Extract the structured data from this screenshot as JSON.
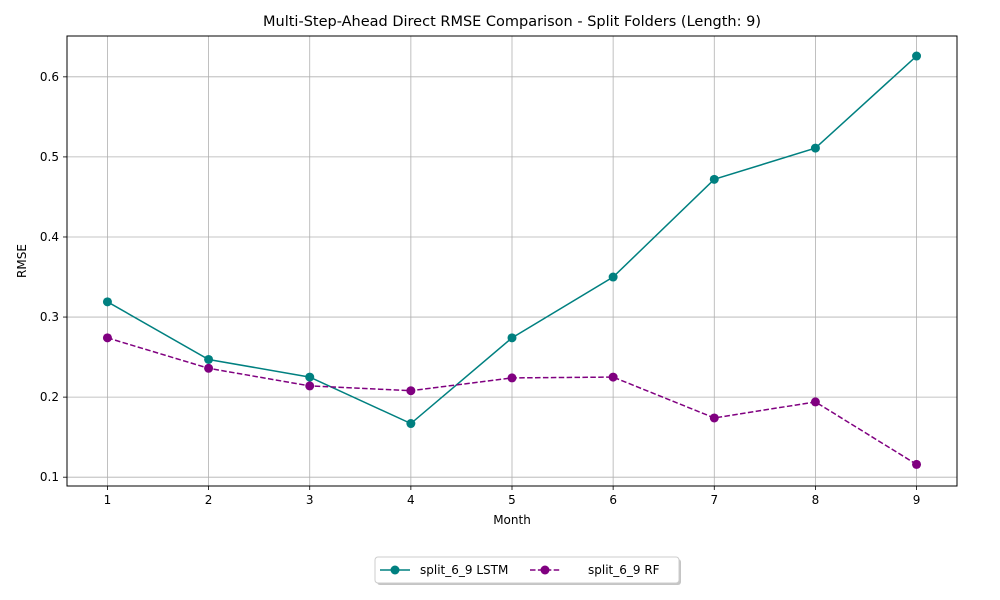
{
  "chart_data": {
    "type": "line",
    "title": "Multi-Step-Ahead Direct RMSE Comparison - Split Folders (Length: 9)",
    "xlabel": "Month",
    "ylabel": "RMSE",
    "x": [
      1,
      2,
      3,
      4,
      5,
      6,
      7,
      8,
      9
    ],
    "xlim": [
      0.6,
      9.4
    ],
    "ylim": [
      0.089,
      0.651
    ],
    "yticks": [
      0.1,
      0.2,
      0.3,
      0.4,
      0.5,
      0.6
    ],
    "ytick_labels": [
      "0.1",
      "0.2",
      "0.3",
      "0.4",
      "0.5",
      "0.6"
    ],
    "xtick_labels": [
      "1",
      "2",
      "3",
      "4",
      "5",
      "6",
      "7",
      "8",
      "9"
    ],
    "grid": true,
    "legend_position": "bottom-center, below plot",
    "series": [
      {
        "name": "split_6_9 LSTM",
        "values": [
          0.319,
          0.247,
          0.225,
          0.167,
          0.274,
          0.35,
          0.472,
          0.511,
          0.626
        ],
        "color": "#008080",
        "line_style": "solid",
        "marker": "circle"
      },
      {
        "name": "split_6_9 RF",
        "values": [
          0.274,
          0.236,
          0.214,
          0.208,
          0.224,
          0.225,
          0.174,
          0.194,
          0.116
        ],
        "color": "#800080",
        "line_style": "dashed",
        "marker": "circle"
      }
    ]
  }
}
